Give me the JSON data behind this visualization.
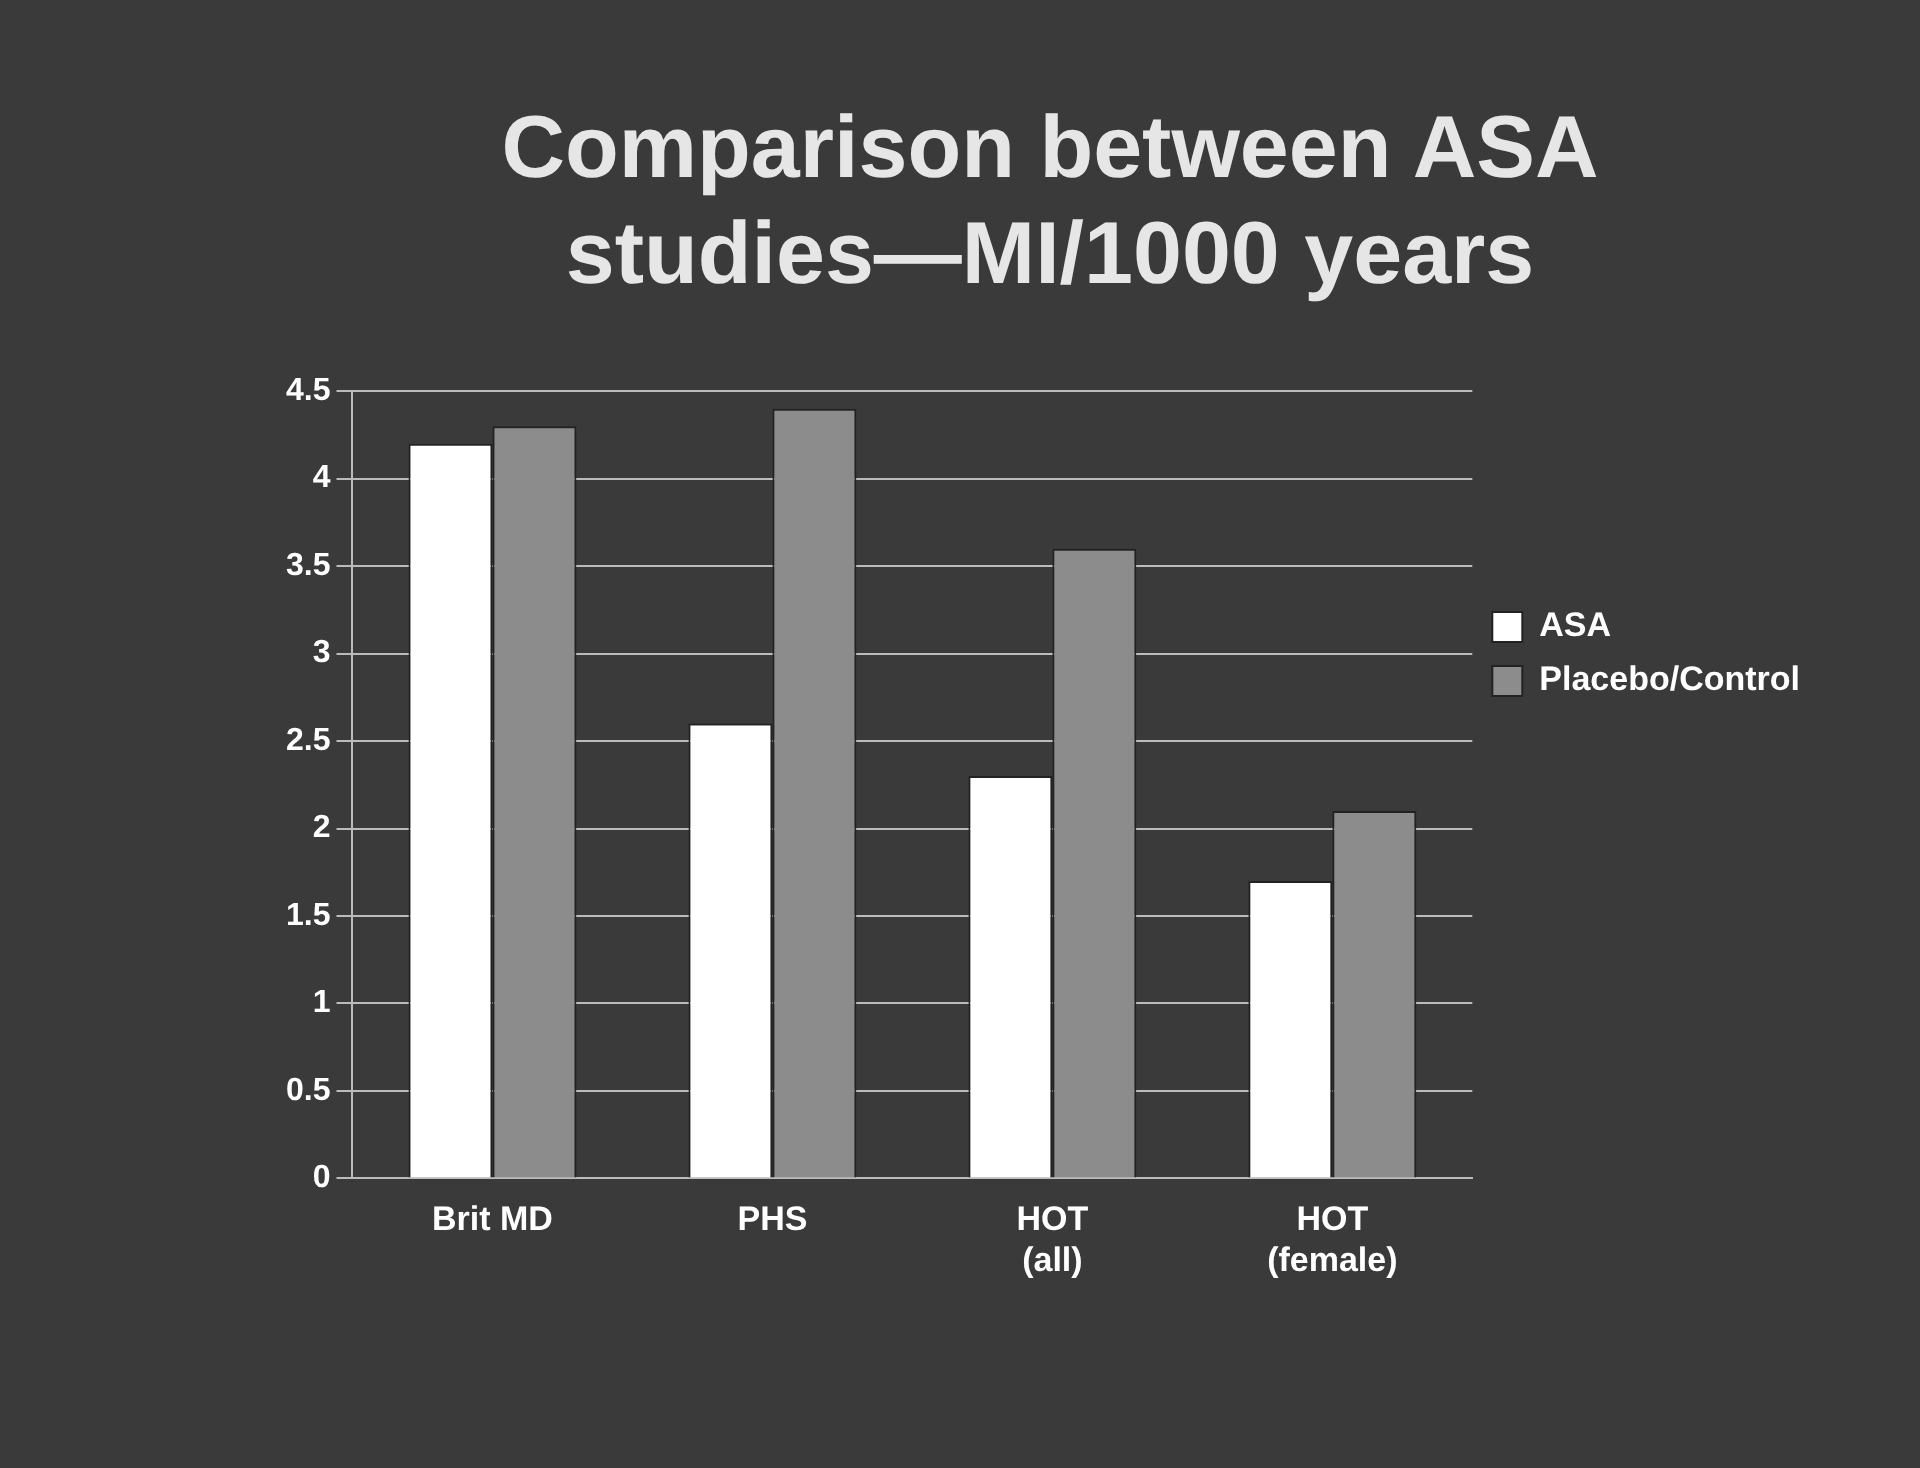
{
  "chart_data": {
    "type": "bar",
    "title": "Comparison between ASA studies—MI/1000 years",
    "categories": [
      "Brit MD",
      "PHS",
      "HOT (all)",
      "HOT (female)"
    ],
    "series": [
      {
        "name": "ASA",
        "color": "#ffffff",
        "values": [
          4.2,
          2.6,
          2.3,
          1.7
        ]
      },
      {
        "name": "Placebo/Control",
        "color": "#8c8c8c",
        "values": [
          4.3,
          4.4,
          3.6,
          2.1
        ]
      }
    ],
    "ylim": [
      0,
      4.5
    ],
    "yticks": [
      0,
      0.5,
      1,
      1.5,
      2,
      2.5,
      3,
      3.5,
      4,
      4.5
    ],
    "grid": "y",
    "legend": "right"
  }
}
